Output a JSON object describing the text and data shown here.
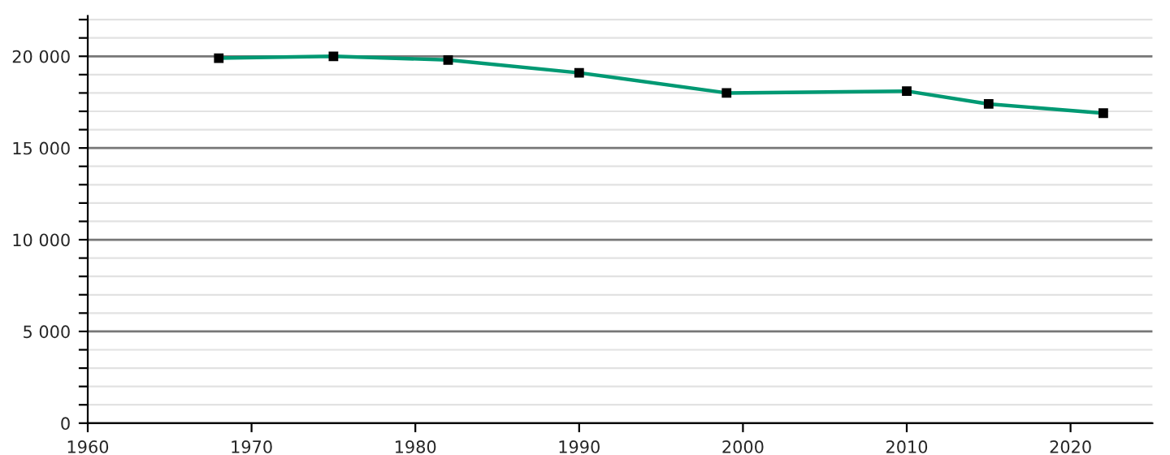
{
  "chart_data": {
    "type": "line",
    "x": [
      1968,
      1975,
      1982,
      1990,
      1999,
      2010,
      2015,
      2022
    ],
    "series": [
      {
        "color": "#009973",
        "values": [
          19900,
          20000,
          19800,
          19100,
          18000,
          18100,
          17400,
          16900
        ]
      }
    ],
    "marker": "square",
    "line_style": "solid",
    "xlim": [
      1960,
      2025
    ],
    "xticks": [
      1960,
      1970,
      1980,
      1990,
      2000,
      2010,
      2020
    ],
    "ylim": [
      0,
      22200
    ],
    "yticks": [
      {
        "value": 0,
        "label": "0"
      },
      {
        "value": 1000,
        "label": null
      },
      {
        "value": 2000,
        "label": null
      },
      {
        "value": 3000,
        "label": null
      },
      {
        "value": 4000,
        "label": null
      },
      {
        "value": 5000,
        "label": "5 000"
      },
      {
        "value": 6000,
        "label": null
      },
      {
        "value": 7000,
        "label": null
      },
      {
        "value": 8000,
        "label": null
      },
      {
        "value": 9000,
        "label": null
      },
      {
        "value": 10000,
        "label": "10 000"
      },
      {
        "value": 11000,
        "label": null
      },
      {
        "value": 12000,
        "label": null
      },
      {
        "value": 13000,
        "label": null
      },
      {
        "value": 14000,
        "label": null
      },
      {
        "value": 15000,
        "label": "15 000"
      },
      {
        "value": 16000,
        "label": null
      },
      {
        "value": 17000,
        "label": null
      },
      {
        "value": 18000,
        "label": null
      },
      {
        "value": 19000,
        "label": null
      },
      {
        "value": 20000,
        "label": "20 000"
      },
      {
        "value": 21000,
        "label": null
      },
      {
        "value": 22000,
        "label": null
      }
    ],
    "grid": "y",
    "legend": false
  }
}
